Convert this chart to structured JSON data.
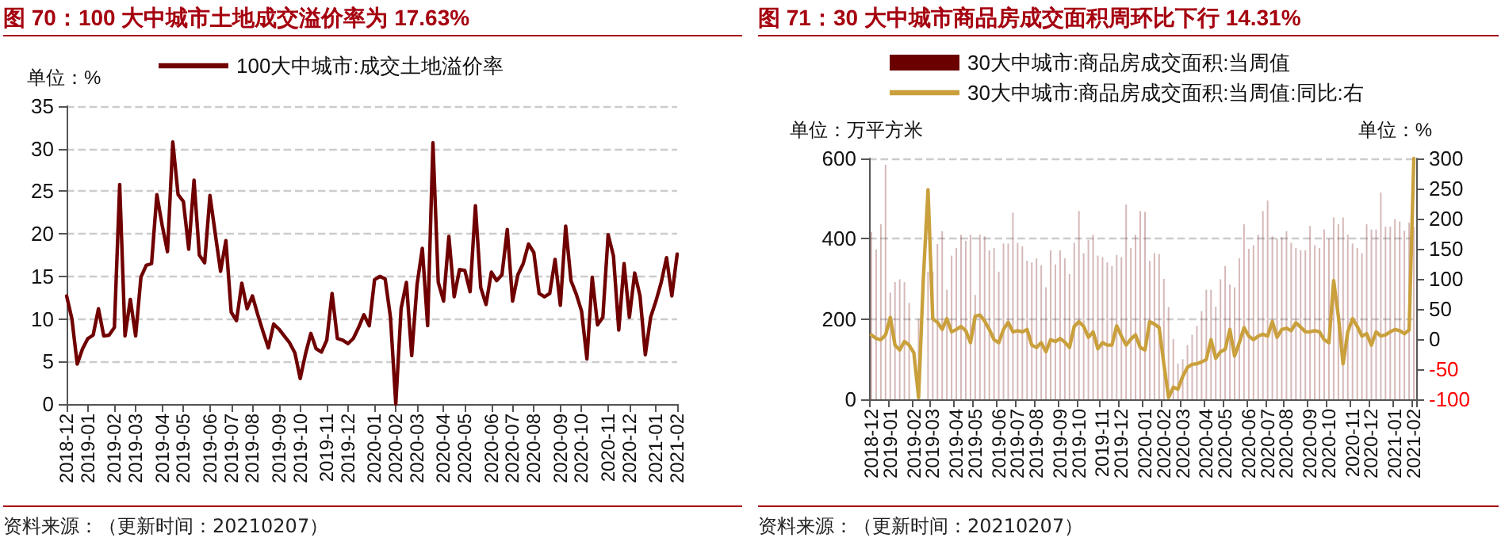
{
  "chart_data": [
    {
      "type": "line",
      "title": "图 70：100 大中城市土地成交溢价率为 17.63%",
      "ylabel": "单位：%",
      "annotations": [
        "资料来源：（更新时间：20210207）"
      ],
      "categories": [
        "2018-12",
        null,
        null,
        null,
        "2019-01",
        null,
        null,
        null,
        null,
        "2019-02",
        null,
        null,
        null,
        "2019-03",
        null,
        null,
        null,
        null,
        "2019-04",
        null,
        null,
        null,
        "2019-05",
        null,
        null,
        null,
        null,
        "2019-06",
        null,
        null,
        null,
        "2019-07",
        null,
        null,
        null,
        "2019-08",
        null,
        null,
        null,
        null,
        "2019-09",
        null,
        null,
        null,
        "2019-10",
        null,
        null,
        null,
        null,
        "2019-11",
        null,
        null,
        null,
        "2019-12",
        null,
        null,
        null,
        null,
        "2020-01",
        null,
        null,
        null,
        "2020-02",
        null,
        null,
        null,
        "2020-03",
        null,
        null,
        null,
        null,
        "2020-04",
        null,
        null,
        null,
        "2020-05",
        null,
        null,
        null,
        null,
        "2020-06",
        null,
        null,
        null,
        "2020-07",
        null,
        null,
        null,
        "2020-08",
        null,
        null,
        null,
        null,
        "2020-09",
        null,
        null,
        null,
        "2020-10",
        null,
        null,
        null,
        null,
        "2020-11",
        null,
        null,
        null,
        "2020-12",
        null,
        null,
        null,
        null,
        "2021-01",
        null,
        null,
        null,
        "2021-02"
      ],
      "series": [
        {
          "name": "100大中城市:成交土地溢价率",
          "color": "#700000",
          "values": [
            12.7,
            10,
            4.7,
            6.5,
            7.7,
            8.1,
            11.2,
            8.0,
            8.1,
            9.0,
            25.8,
            8.0,
            12.3,
            8.0,
            14.9,
            16.3,
            16.5,
            24.6,
            21,
            17.9,
            30.8,
            24.6,
            23.8,
            18.2,
            26.3,
            17.5,
            16.6,
            24.5,
            20,
            15.6,
            19.2,
            10.8,
            9.8,
            14.2,
            11.2,
            12.7,
            10.5,
            8.5,
            6.6,
            9.4,
            8.8,
            8.0,
            7.2,
            6.0,
            3.0,
            5.9,
            8.3,
            6.5,
            6.1,
            7.5,
            13.0,
            7.7,
            7.5,
            7.1,
            7.7,
            9.0,
            10.5,
            9.2,
            14.6,
            15.0,
            14.7,
            10.2,
            0,
            11.2,
            14.3,
            5.7,
            14.0,
            18.3,
            9.2,
            30.7,
            14.3,
            12.1,
            19.7,
            12.6,
            15.8,
            15.7,
            13.2,
            23.3,
            13.7,
            11.7,
            15.5,
            14.5,
            15.2,
            20.5,
            12.1,
            15.2,
            16.5,
            18.8,
            17.8,
            13.0,
            12.6,
            13.0,
            17.0,
            11.6,
            20.9,
            14.5,
            12.9,
            10.9,
            5.3,
            14.9,
            9.3,
            10.2,
            19.9,
            17.4,
            8.7,
            16.5,
            10.2,
            15.4,
            12.7,
            5.8,
            10.2,
            12.1,
            14.3,
            17.2,
            12.7,
            17.63
          ]
        }
      ],
      "ylim": [
        0,
        35
      ],
      "yticks": [
        0,
        5,
        10,
        15,
        20,
        25,
        30,
        35
      ],
      "grid": "y",
      "legend": "top",
      "marker": "none"
    },
    {
      "type": "bar",
      "title": "图 71：30 大中城市商品房成交面积周环比下行 14.31%",
      "ylabel": "单位：万平方米",
      "y2label": "单位：%",
      "annotations": [
        "资料来源：（更新时间：20210207）"
      ],
      "categories": [
        "2018-12",
        null,
        null,
        null,
        "2019-01",
        null,
        null,
        null,
        null,
        "2019-02",
        null,
        null,
        null,
        "2019-03",
        null,
        null,
        null,
        null,
        "2019-04",
        null,
        null,
        null,
        "2019-05",
        null,
        null,
        null,
        null,
        "2019-06",
        null,
        null,
        null,
        "2019-07",
        null,
        null,
        null,
        "2019-08",
        null,
        null,
        null,
        null,
        "2019-09",
        null,
        null,
        null,
        "2019-10",
        null,
        null,
        null,
        null,
        "2019-11",
        null,
        null,
        null,
        "2019-12",
        null,
        null,
        null,
        null,
        "2020-01",
        null,
        null,
        null,
        "2020-02",
        null,
        null,
        null,
        "2020-03",
        null,
        null,
        null,
        null,
        "2020-04",
        null,
        null,
        null,
        "2020-05",
        null,
        null,
        null,
        null,
        "2020-06",
        null,
        null,
        null,
        "2020-07",
        null,
        null,
        null,
        "2020-08",
        null,
        null,
        null,
        null,
        "2020-09",
        null,
        null,
        null,
        "2020-10",
        null,
        null,
        null,
        null,
        "2020-11",
        null,
        null,
        null,
        "2020-12",
        null,
        null,
        null,
        null,
        "2021-01",
        null,
        null,
        null,
        "2021-02"
      ],
      "series": [
        {
          "name": "30大中城市:商品房成交面积:当周值",
          "color": "#6b0000",
          "values": [
            417,
            373,
            436,
            584,
            266,
            292,
            299,
            292,
            240,
            null,
            200,
            null,
            318,
            318,
            387,
            419,
            273,
            358,
            377,
            410,
            395,
            410,
            260,
            410,
            406,
            371,
            377,
            318,
            388,
            388,
            465,
            390,
            381,
            345,
            341,
            351,
            334,
            279,
            371,
            336,
            371,
            351,
            312,
            390,
            469,
            364,
            397,
            410,
            358,
            354,
            341,
            332,
            360,
            354,
            485,
            377,
            410,
            469,
            467,
            345,
            364,
            362,
            300,
            230,
            150,
            89,
            100,
            135,
            161,
            183,
            220,
            273,
            273,
            231,
            299,
            332,
            286,
            279,
            351,
            436,
            375,
            384,
            410,
            469,
            495,
            406,
            401,
            404,
            419,
            390,
            377,
            371,
            371,
            432,
            384,
            377,
            423,
            400,
            453,
            436,
            453,
            410,
            388,
            377,
            364,
            436,
            423,
            423,
            515,
            430,
            430,
            449,
            443,
            420,
            440,
            430
          ]
        },
        {
          "name": "30大中城市:商品房成交面积:当周值:同比:右",
          "type": "line",
          "axis": "y2",
          "color": "#c9a03c",
          "values": [
            7,
            1,
            -1,
            7,
            36,
            -10,
            -18,
            -4,
            -10,
            -23,
            -97,
            99,
            248,
            34,
            28,
            16,
            34,
            12,
            16,
            21,
            14,
            -6,
            38,
            40,
            30,
            16,
            -1,
            -6,
            16,
            28,
            12,
            14,
            12,
            16,
            -10,
            -14,
            -6,
            -21,
            -1,
            -4,
            1,
            -5,
            -14,
            21,
            29,
            21,
            3,
            12,
            -16,
            -6,
            -10,
            -10,
            22,
            5,
            -10,
            0,
            7,
            -14,
            -18,
            29,
            25,
            19,
            -41,
            -97,
            -80,
            -83,
            -62,
            -47,
            -42,
            -41,
            -38,
            -34,
            -1,
            -32,
            -21,
            -17,
            16,
            -28,
            -6,
            19,
            5,
            -1,
            5,
            8,
            5,
            29,
            3,
            16,
            18,
            14,
            27,
            20,
            12,
            12,
            14,
            12,
            -1,
            -6,
            97,
            38,
            -41,
            12,
            34,
            21,
            5,
            9,
            -10,
            12,
            5,
            7,
            12,
            16,
            14,
            9,
            15,
            300
          ]
        }
      ],
      "ylim": [
        0,
        600
      ],
      "yticks": [
        0,
        200,
        400,
        600
      ],
      "y2lim": [
        -100,
        300
      ],
      "y2ticks": [
        -100,
        -50,
        0,
        50,
        100,
        150,
        200,
        250,
        300
      ],
      "grid": "y",
      "legend": "top",
      "marker": "none"
    }
  ]
}
